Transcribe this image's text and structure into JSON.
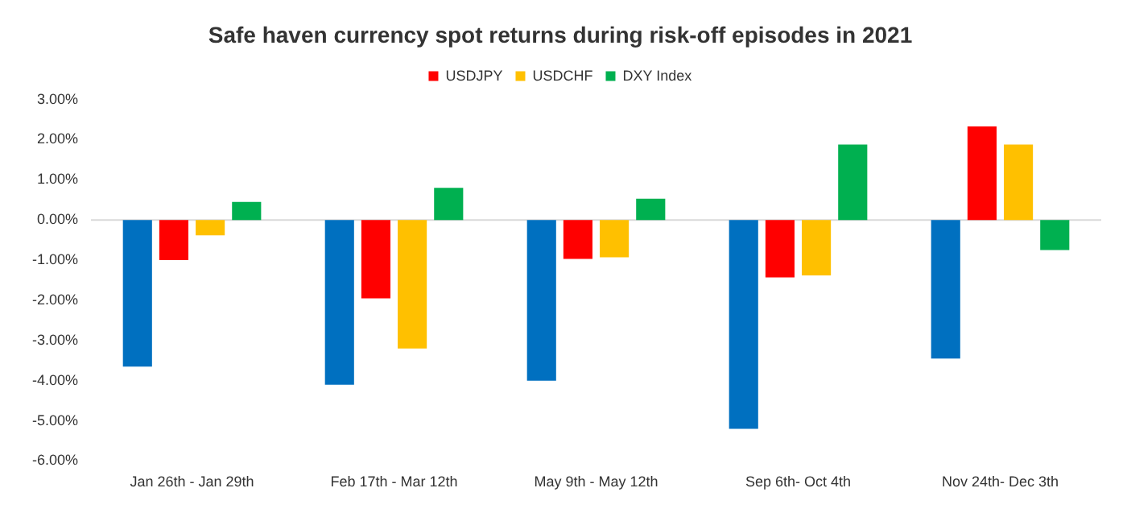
{
  "chart_data": {
    "type": "bar",
    "title": "Safe haven currency spot returns during risk-off episodes in 2021",
    "categories": [
      "Jan 26th - Jan 29th",
      "Feb 17th - Mar 12th",
      "May 9th - May 12th",
      "Sep 6th- Oct 4th",
      "Nov 24th- Dec 3th"
    ],
    "series": [
      {
        "color": "#0070c0",
        "values": [
          -3.65,
          -4.1,
          -4.0,
          -5.2,
          -3.45
        ]
      },
      {
        "name": "USDJPY",
        "color": "#ff0000",
        "values": [
          -1.0,
          -1.95,
          -0.97,
          -1.43,
          2.33
        ]
      },
      {
        "name": "USDCHF",
        "color": "#ffc000",
        "values": [
          -0.38,
          -3.2,
          -0.93,
          -1.38,
          1.88
        ]
      },
      {
        "name": "DXY Index",
        "color": "#00b050",
        "values": [
          0.45,
          0.8,
          0.53,
          1.88,
          -0.75
        ]
      }
    ],
    "ylim": [
      -6,
      3
    ],
    "yticks": [
      {
        "value": -6,
        "label": "-6.00%"
      },
      {
        "value": -5,
        "label": "-5.00%"
      },
      {
        "value": -4,
        "label": "-4.00%"
      },
      {
        "value": -3,
        "label": "-3.00%"
      },
      {
        "value": -2,
        "label": "-2.00%"
      },
      {
        "value": -1,
        "label": "-1.00%"
      },
      {
        "value": 0,
        "label": "0.00%"
      },
      {
        "value": 1,
        "label": "1.00%"
      },
      {
        "value": 2,
        "label": "2.00%"
      },
      {
        "value": 3,
        "label": "3.00%"
      }
    ],
    "ref_lines": [
      {
        "axis": "y",
        "value": 0,
        "color": "#d9d9d9"
      }
    ],
    "grid": false,
    "legend": "top"
  }
}
